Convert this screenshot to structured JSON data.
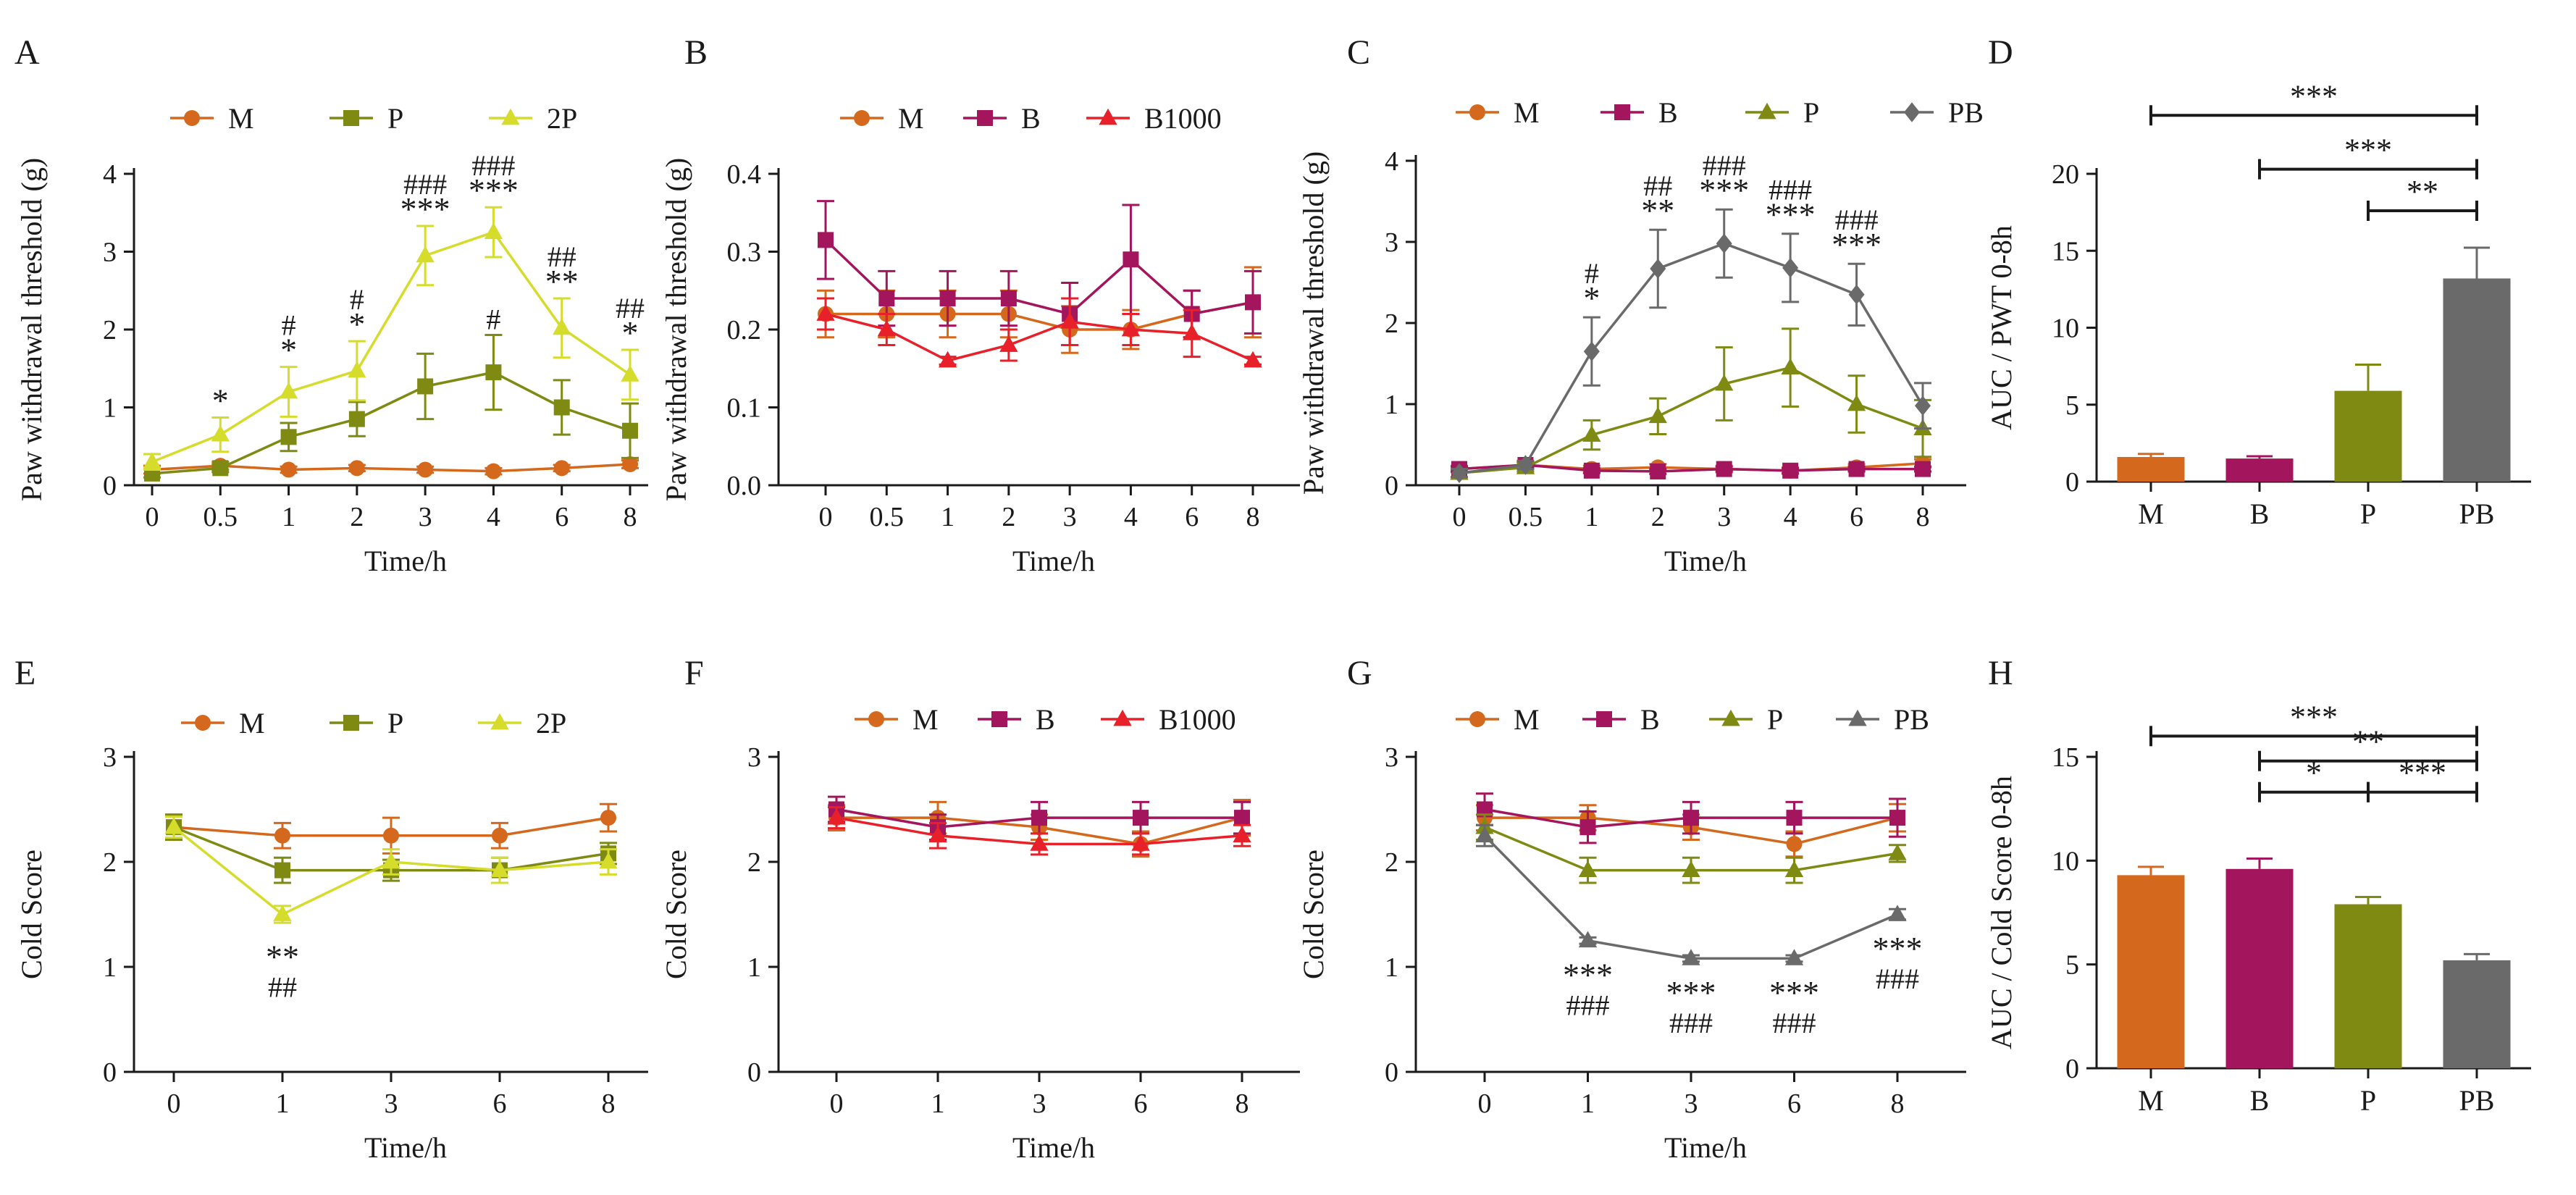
{
  "colors": {
    "M": "#d4691e",
    "B": "#a3155c",
    "B1000": "#e8202a",
    "P": "#7e8a12",
    "2P": "#d6dc2c",
    "PB": "#6a6a6a"
  },
  "chart_data": [
    {
      "id": "A",
      "panel": "A",
      "type": "line",
      "ylabel": "Paw withdrawal threshold (g)",
      "xlabel": "Time/h",
      "categories": [
        "0",
        "0.5",
        "1",
        "2",
        "3",
        "4",
        "6",
        "8"
      ],
      "ylim": [
        0,
        4
      ],
      "yticks": [
        "0",
        "1",
        "2",
        "3",
        "4"
      ],
      "series": [
        {
          "name": "M",
          "marker": "circle",
          "values": [
            0.2,
            0.25,
            0.2,
            0.22,
            0.2,
            0.18,
            0.22,
            0.27
          ],
          "err": [
            0.05,
            0.05,
            0.04,
            0.04,
            0.04,
            0.04,
            0.04,
            0.05
          ]
        },
        {
          "name": "P",
          "marker": "square",
          "values": [
            0.15,
            0.22,
            0.62,
            0.85,
            1.27,
            1.45,
            1.0,
            0.7
          ],
          "err": [
            0.05,
            0.05,
            0.18,
            0.22,
            0.42,
            0.48,
            0.35,
            0.35
          ]
        },
        {
          "name": "2P",
          "marker": "triangle",
          "values": [
            0.3,
            0.65,
            1.2,
            1.47,
            2.95,
            3.25,
            2.02,
            1.42
          ],
          "err": [
            0.1,
            0.22,
            0.32,
            0.38,
            0.38,
            0.32,
            0.38,
            0.32
          ]
        }
      ],
      "annotations": [
        {
          "idx": 1,
          "y": 0.87,
          "text": "*"
        },
        {
          "idx": 2,
          "y": 1.52,
          "text": "*"
        },
        {
          "idx": 2,
          "y": 1.52,
          "text": "#",
          "row": 1
        },
        {
          "idx": 3,
          "y": 1.85,
          "text": "*"
        },
        {
          "idx": 3,
          "y": 1.85,
          "text": "#",
          "row": 1
        },
        {
          "idx": 4,
          "y": 3.33,
          "text": "***"
        },
        {
          "idx": 4,
          "y": 3.33,
          "text": "###",
          "row": 1
        },
        {
          "idx": 5,
          "y": 3.57,
          "text": "***"
        },
        {
          "idx": 5,
          "y": 3.57,
          "text": "###",
          "row": 1
        },
        {
          "idx": 5,
          "y": 1.93,
          "text": "#"
        },
        {
          "idx": 6,
          "y": 2.4,
          "text": "**"
        },
        {
          "idx": 6,
          "y": 2.4,
          "text": "##",
          "row": 1
        },
        {
          "idx": 7,
          "y": 1.74,
          "text": "*"
        },
        {
          "idx": 7,
          "y": 1.74,
          "text": "##",
          "row": 1
        }
      ]
    },
    {
      "id": "B",
      "panel": "B",
      "type": "line",
      "ylabel": "Paw withdrawal threshold (g)",
      "xlabel": "Time/h",
      "categories": [
        "0",
        "0.5",
        "1",
        "2",
        "3",
        "4",
        "6",
        "8"
      ],
      "ylim": [
        0,
        0.4
      ],
      "yticks": [
        "0.0",
        "0.1",
        "0.2",
        "0.3",
        "0.4"
      ],
      "series": [
        {
          "name": "M",
          "marker": "circle",
          "values": [
            0.22,
            0.22,
            0.22,
            0.22,
            0.2,
            0.2,
            0.22,
            0.235
          ],
          "err": [
            0.03,
            0.03,
            0.03,
            0.03,
            0.03,
            0.025,
            0.03,
            0.045
          ]
        },
        {
          "name": "B",
          "marker": "square",
          "values": [
            0.315,
            0.24,
            0.24,
            0.24,
            0.22,
            0.29,
            0.22,
            0.235
          ],
          "err": [
            0.05,
            0.035,
            0.035,
            0.035,
            0.04,
            0.07,
            0.03,
            0.04
          ]
        },
        {
          "name": "B1000",
          "marker": "triangle",
          "values": [
            0.22,
            0.2,
            0.16,
            0.18,
            0.21,
            0.2,
            0.195,
            0.16
          ],
          "err": [
            0.02,
            0.02,
            0.005,
            0.02,
            0.03,
            0.02,
            0.03,
            0.005
          ]
        }
      ],
      "annotations": []
    },
    {
      "id": "C",
      "panel": "C",
      "type": "line",
      "ylabel": "Paw withdrawal threshold (g)",
      "xlabel": "Time/h",
      "categories": [
        "0",
        "0.5",
        "1",
        "2",
        "3",
        "4",
        "6",
        "8"
      ],
      "ylim": [
        0,
        4
      ],
      "yticks": [
        "0",
        "1",
        "2",
        "3",
        "4"
      ],
      "series": [
        {
          "name": "M",
          "marker": "circle",
          "values": [
            0.2,
            0.25,
            0.2,
            0.22,
            0.2,
            0.18,
            0.22,
            0.27
          ],
          "err": [
            0.04,
            0.04,
            0.04,
            0.04,
            0.04,
            0.04,
            0.04,
            0.05
          ]
        },
        {
          "name": "B",
          "marker": "square",
          "values": [
            0.2,
            0.25,
            0.18,
            0.17,
            0.2,
            0.18,
            0.2,
            0.2
          ],
          "err": [
            0.03,
            0.03,
            0.03,
            0.03,
            0.03,
            0.03,
            0.03,
            0.03
          ]
        },
        {
          "name": "P",
          "marker": "triangle",
          "values": [
            0.15,
            0.22,
            0.62,
            0.85,
            1.25,
            1.45,
            1.0,
            0.7
          ],
          "err": [
            0.05,
            0.05,
            0.18,
            0.22,
            0.45,
            0.48,
            0.35,
            0.35
          ]
        },
        {
          "name": "PB",
          "marker": "diamond",
          "values": [
            0.15,
            0.25,
            1.65,
            2.67,
            2.98,
            2.68,
            2.35,
            0.98
          ],
          "err": [
            0.05,
            0.05,
            0.42,
            0.48,
            0.42,
            0.42,
            0.38,
            0.28
          ]
        }
      ],
      "annotations": [
        {
          "idx": 2,
          "y": 2.1,
          "text": "*"
        },
        {
          "idx": 2,
          "y": 2.1,
          "text": "#",
          "row": 1
        },
        {
          "idx": 3,
          "y": 3.18,
          "text": "**"
        },
        {
          "idx": 3,
          "y": 3.18,
          "text": "##",
          "row": 1
        },
        {
          "idx": 4,
          "y": 3.43,
          "text": "***"
        },
        {
          "idx": 4,
          "y": 3.43,
          "text": "###",
          "row": 1
        },
        {
          "idx": 5,
          "y": 3.13,
          "text": "***"
        },
        {
          "idx": 5,
          "y": 3.13,
          "text": "###",
          "row": 1
        },
        {
          "idx": 6,
          "y": 2.76,
          "text": "***"
        },
        {
          "idx": 6,
          "y": 2.76,
          "text": "###",
          "row": 1
        }
      ]
    },
    {
      "id": "D",
      "panel": "D",
      "type": "bar",
      "ylabel": "AUC / PWT 0-8h",
      "xlabel": "",
      "categories": [
        "M",
        "B",
        "P",
        "PB"
      ],
      "ylim": [
        0,
        20
      ],
      "yticks": [
        "0",
        "5",
        "10",
        "15",
        "20"
      ],
      "values": [
        1.6,
        1.5,
        5.9,
        13.2
      ],
      "err": [
        0.2,
        0.15,
        1.7,
        2.0
      ],
      "bar_colors": [
        "M",
        "B",
        "P",
        "PB"
      ],
      "brackets": [
        {
          "from": 0,
          "to": 3,
          "y": 23.8,
          "text": "***"
        },
        {
          "from": 1,
          "to": 3,
          "y": 20.3,
          "text": "***"
        },
        {
          "from": 2,
          "to": 3,
          "y": 17.6,
          "text": "**"
        }
      ]
    },
    {
      "id": "E",
      "panel": "E",
      "type": "line",
      "ylabel": "Cold Score",
      "xlabel": "Time/h",
      "categories": [
        "0",
        "1",
        "3",
        "6",
        "8"
      ],
      "ylim": [
        0,
        3
      ],
      "yticks": [
        "0",
        "1",
        "2",
        "3"
      ],
      "series": [
        {
          "name": "M",
          "marker": "circle",
          "values": [
            2.33,
            2.25,
            2.25,
            2.25,
            2.42
          ],
          "err": [
            0.12,
            0.12,
            0.17,
            0.12,
            0.13
          ]
        },
        {
          "name": "P",
          "marker": "square",
          "values": [
            2.33,
            1.92,
            1.92,
            1.92,
            2.08
          ],
          "err": [
            0.12,
            0.12,
            0.1,
            0.12,
            0.1
          ]
        },
        {
          "name": "2P",
          "marker": "triangle",
          "values": [
            2.33,
            1.5,
            2.0,
            1.92,
            2.0
          ],
          "err": [
            0.1,
            0.08,
            0.12,
            0.12,
            0.12
          ]
        }
      ],
      "annotations": [
        {
          "idx": 1,
          "y": 1.32,
          "text": "**",
          "below": true
        },
        {
          "idx": 1,
          "y": 1.32,
          "text": "##",
          "below": true,
          "row": 1
        }
      ]
    },
    {
      "id": "F",
      "panel": "F",
      "type": "line",
      "ylabel": "Cold Score",
      "xlabel": "Time/h",
      "categories": [
        "0",
        "1",
        "3",
        "6",
        "8"
      ],
      "ylim": [
        0,
        3
      ],
      "yticks": [
        "0",
        "1",
        "2",
        "3"
      ],
      "series": [
        {
          "name": "M",
          "marker": "circle",
          "values": [
            2.42,
            2.42,
            2.33,
            2.17,
            2.42
          ],
          "err": [
            0.12,
            0.15,
            0.12,
            0.12,
            0.17
          ]
        },
        {
          "name": "B",
          "marker": "square",
          "values": [
            2.5,
            2.33,
            2.42,
            2.42,
            2.42
          ],
          "err": [
            0.12,
            0.12,
            0.15,
            0.15,
            0.15
          ]
        },
        {
          "name": "B1000",
          "marker": "triangle",
          "values": [
            2.42,
            2.25,
            2.17,
            2.17,
            2.25
          ],
          "err": [
            0.1,
            0.12,
            0.1,
            0.1,
            0.1
          ]
        }
      ],
      "annotations": []
    },
    {
      "id": "G",
      "panel": "G",
      "type": "line",
      "ylabel": "Cold Score",
      "xlabel": "Time/h",
      "categories": [
        "0",
        "1",
        "3",
        "6",
        "8"
      ],
      "ylim": [
        0,
        3
      ],
      "yticks": [
        "0",
        "1",
        "2",
        "3"
      ],
      "series": [
        {
          "name": "M",
          "marker": "circle",
          "values": [
            2.42,
            2.42,
            2.33,
            2.17,
            2.42
          ],
          "err": [
            0.12,
            0.12,
            0.12,
            0.12,
            0.13
          ]
        },
        {
          "name": "B",
          "marker": "square",
          "values": [
            2.5,
            2.33,
            2.42,
            2.42,
            2.42
          ],
          "err": [
            0.15,
            0.15,
            0.15,
            0.15,
            0.18
          ]
        },
        {
          "name": "P",
          "marker": "triangle",
          "values": [
            2.33,
            1.92,
            1.92,
            1.92,
            2.08
          ],
          "err": [
            0.12,
            0.12,
            0.12,
            0.12,
            0.08
          ]
        },
        {
          "name": "PB",
          "marker": "triangle",
          "values": [
            2.25,
            1.25,
            1.08,
            1.08,
            1.5
          ],
          "err": [
            0.1,
            0.03,
            0.03,
            0.03,
            0.05
          ]
        }
      ],
      "annotations": [
        {
          "idx": 1,
          "y": 1.15,
          "text": "***",
          "below": true
        },
        {
          "idx": 1,
          "y": 1.15,
          "text": "###",
          "below": true,
          "row": 1
        },
        {
          "idx": 2,
          "y": 0.98,
          "text": "***",
          "below": true
        },
        {
          "idx": 2,
          "y": 0.98,
          "text": "###",
          "below": true,
          "row": 1
        },
        {
          "idx": 3,
          "y": 0.98,
          "text": "***",
          "below": true
        },
        {
          "idx": 3,
          "y": 0.98,
          "text": "###",
          "below": true,
          "row": 1
        },
        {
          "idx": 4,
          "y": 1.4,
          "text": "***",
          "below": true
        },
        {
          "idx": 4,
          "y": 1.4,
          "text": "###",
          "below": true,
          "row": 1
        }
      ]
    },
    {
      "id": "H",
      "panel": "H",
      "type": "bar",
      "ylabel": "AUC / Cold Score 0-8h",
      "xlabel": "",
      "categories": [
        "M",
        "B",
        "P",
        "PB"
      ],
      "ylim": [
        0,
        15
      ],
      "yticks": [
        "0",
        "5",
        "10",
        "15"
      ],
      "values": [
        9.3,
        9.6,
        7.9,
        5.2
      ],
      "err": [
        0.4,
        0.5,
        0.35,
        0.3
      ],
      "bar_colors": [
        "M",
        "B",
        "P",
        "PB"
      ],
      "brackets": [
        {
          "from": 0,
          "to": 3,
          "y": 16.0,
          "text": "***"
        },
        {
          "from": 1,
          "to": 3,
          "y": 14.8,
          "text": "**"
        },
        {
          "from": 1,
          "to": 2,
          "y": 13.3,
          "text": "*"
        },
        {
          "from": 2,
          "to": 3,
          "y": 13.3,
          "text": "***"
        }
      ]
    }
  ]
}
